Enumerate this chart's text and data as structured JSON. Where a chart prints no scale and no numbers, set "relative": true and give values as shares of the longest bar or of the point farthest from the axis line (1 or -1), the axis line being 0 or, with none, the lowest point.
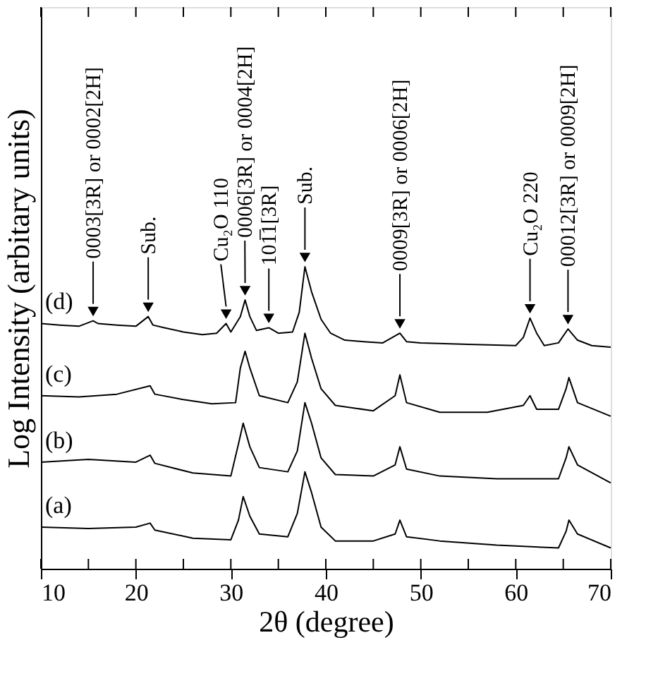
{
  "chart_data": {
    "type": "line",
    "xlabel": "2θ (degree)",
    "ylabel": "Log Intensity (arbitary units)",
    "relative": true,
    "xlim": [
      10,
      70
    ],
    "xticks": [
      10,
      {
        "value": 15,
        "label": null
      },
      20,
      {
        "value": 25,
        "label": null
      },
      30,
      {
        "value": 35,
        "label": null
      },
      40,
      {
        "value": 45,
        "label": null
      },
      50,
      {
        "value": 55,
        "label": null
      },
      60,
      {
        "value": 65,
        "label": null
      },
      70
    ],
    "grid": false,
    "legend": "left",
    "marker": "none",
    "line_style": "solid",
    "series": [
      {
        "name": "(d)",
        "color": "#000000",
        "x": [
          10,
          12,
          14,
          15.5,
          16,
          18,
          20,
          21.3,
          21.8,
          23,
          25,
          27,
          28.5,
          29.5,
          30,
          31,
          31.5,
          32,
          32.7,
          34,
          35,
          36.5,
          37.2,
          37.8,
          38.5,
          39.5,
          40.5,
          42,
          44,
          46,
          47.8,
          48.5,
          50,
          55,
          60,
          60.8,
          61.5,
          62.2,
          63,
          64.5,
          65.5,
          66.5,
          68,
          70
        ],
        "values": [
          0.812,
          0.807,
          0.803,
          0.821,
          0.812,
          0.807,
          0.803,
          0.835,
          0.807,
          0.798,
          0.784,
          0.775,
          0.78,
          0.812,
          0.784,
          0.835,
          0.89,
          0.835,
          0.789,
          0.798,
          0.78,
          0.784,
          0.849,
          1,
          0.917,
          0.826,
          0.78,
          0.757,
          0.752,
          0.748,
          0.78,
          0.752,
          0.748,
          0.743,
          0.739,
          0.766,
          0.83,
          0.78,
          0.739,
          0.748,
          0.794,
          0.757,
          0.739,
          0.734
        ]
      },
      {
        "name": "(c)",
        "color": "#000000",
        "x": [
          10,
          14,
          18,
          21.5,
          22,
          25,
          28,
          30.5,
          31,
          31.5,
          32,
          33,
          36,
          37,
          37.8,
          38.5,
          39.5,
          41,
          45,
          47.3,
          47.8,
          48.5,
          52,
          57,
          60.8,
          61.5,
          62.2,
          64.5,
          65.3,
          65.6,
          66.5,
          70
        ],
        "values": [
          0.573,
          0.569,
          0.578,
          0.606,
          0.578,
          0.56,
          0.546,
          0.55,
          0.665,
          0.72,
          0.665,
          0.573,
          0.55,
          0.619,
          0.78,
          0.697,
          0.596,
          0.541,
          0.523,
          0.573,
          0.642,
          0.55,
          0.518,
          0.518,
          0.541,
          0.573,
          0.528,
          0.528,
          0.596,
          0.633,
          0.55,
          0.505
        ]
      },
      {
        "name": "(b)",
        "color": "#000000",
        "x": [
          10,
          15,
          20,
          21.5,
          22,
          26,
          30,
          30.8,
          31.3,
          32,
          33,
          36,
          37,
          37.8,
          38.5,
          39.5,
          41,
          45,
          47.3,
          47.8,
          48.5,
          52,
          58,
          64.5,
          65.3,
          65.6,
          66.5,
          70
        ],
        "values": [
          0.353,
          0.362,
          0.353,
          0.376,
          0.349,
          0.317,
          0.307,
          0.413,
          0.482,
          0.404,
          0.335,
          0.321,
          0.39,
          0.55,
          0.482,
          0.367,
          0.312,
          0.307,
          0.344,
          0.404,
          0.33,
          0.307,
          0.298,
          0.298,
          0.367,
          0.404,
          0.344,
          0.284
        ]
      },
      {
        "name": "(a)",
        "color": "#000000",
        "x": [
          10,
          15,
          20,
          21.5,
          22,
          26,
          30,
          30.8,
          31.3,
          32,
          33,
          36,
          37,
          37.8,
          38.5,
          39.5,
          41,
          45,
          47.3,
          47.8,
          48.5,
          52,
          58,
          64.5,
          65.3,
          65.6,
          66.5,
          70
        ],
        "values": [
          0.138,
          0.133,
          0.138,
          0.151,
          0.128,
          0.101,
          0.096,
          0.161,
          0.239,
          0.174,
          0.115,
          0.106,
          0.183,
          0.321,
          0.252,
          0.138,
          0.092,
          0.092,
          0.115,
          0.161,
          0.106,
          0.092,
          0.078,
          0.069,
          0.124,
          0.161,
          0.115,
          0.069
        ]
      }
    ],
    "annotations": [
      {
        "text": "0003[3R] or 0002[2H]",
        "x": 15.5,
        "y": 0.821
      },
      {
        "text": "Sub.",
        "x": 21.3,
        "y": 0.835
      },
      {
        "text": "Cu₂O 110",
        "x": 29.5,
        "y": 0.812
      },
      {
        "text": "0006[3R] or 0004[2H]",
        "x": 31.5,
        "y": 0.89
      },
      {
        "text": "101̅1[3R]",
        "x": 34,
        "y": 0.798
      },
      {
        "text": "Sub.",
        "x": 37.8,
        "y": 1
      },
      {
        "text": "0009[3R] or 0006[2H]",
        "x": 47.8,
        "y": 0.78
      },
      {
        "text": "Cu₂O 220",
        "x": 61.5,
        "y": 0.83
      },
      {
        "text": "00012[3R] or 0009[2H]",
        "x": 65.5,
        "y": 0.794
      }
    ]
  }
}
